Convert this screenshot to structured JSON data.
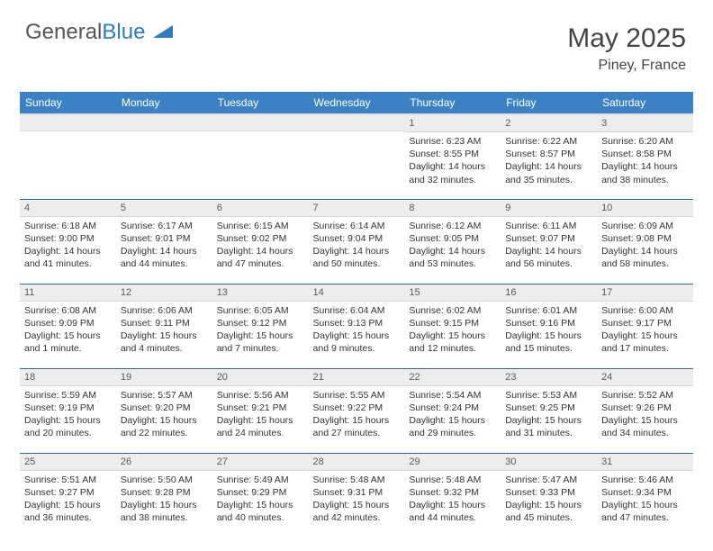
{
  "logo": {
    "part1": "General",
    "part2": "Blue"
  },
  "header": {
    "title": "May 2025",
    "location": "Piney, France"
  },
  "colors": {
    "header_bg": "#3b82c4",
    "row_border": "#2a6aa0",
    "daynum_bg": "#ededed"
  },
  "day_headers": [
    "Sunday",
    "Monday",
    "Tuesday",
    "Wednesday",
    "Thursday",
    "Friday",
    "Saturday"
  ],
  "weeks": [
    [
      {
        "n": "",
        "sr": "",
        "ss": "",
        "dl": ""
      },
      {
        "n": "",
        "sr": "",
        "ss": "",
        "dl": ""
      },
      {
        "n": "",
        "sr": "",
        "ss": "",
        "dl": ""
      },
      {
        "n": "",
        "sr": "",
        "ss": "",
        "dl": ""
      },
      {
        "n": "1",
        "sr": "Sunrise: 6:23 AM",
        "ss": "Sunset: 8:55 PM",
        "dl": "Daylight: 14 hours and 32 minutes."
      },
      {
        "n": "2",
        "sr": "Sunrise: 6:22 AM",
        "ss": "Sunset: 8:57 PM",
        "dl": "Daylight: 14 hours and 35 minutes."
      },
      {
        "n": "3",
        "sr": "Sunrise: 6:20 AM",
        "ss": "Sunset: 8:58 PM",
        "dl": "Daylight: 14 hours and 38 minutes."
      }
    ],
    [
      {
        "n": "4",
        "sr": "Sunrise: 6:18 AM",
        "ss": "Sunset: 9:00 PM",
        "dl": "Daylight: 14 hours and 41 minutes."
      },
      {
        "n": "5",
        "sr": "Sunrise: 6:17 AM",
        "ss": "Sunset: 9:01 PM",
        "dl": "Daylight: 14 hours and 44 minutes."
      },
      {
        "n": "6",
        "sr": "Sunrise: 6:15 AM",
        "ss": "Sunset: 9:02 PM",
        "dl": "Daylight: 14 hours and 47 minutes."
      },
      {
        "n": "7",
        "sr": "Sunrise: 6:14 AM",
        "ss": "Sunset: 9:04 PM",
        "dl": "Daylight: 14 hours and 50 minutes."
      },
      {
        "n": "8",
        "sr": "Sunrise: 6:12 AM",
        "ss": "Sunset: 9:05 PM",
        "dl": "Daylight: 14 hours and 53 minutes."
      },
      {
        "n": "9",
        "sr": "Sunrise: 6:11 AM",
        "ss": "Sunset: 9:07 PM",
        "dl": "Daylight: 14 hours and 56 minutes."
      },
      {
        "n": "10",
        "sr": "Sunrise: 6:09 AM",
        "ss": "Sunset: 9:08 PM",
        "dl": "Daylight: 14 hours and 58 minutes."
      }
    ],
    [
      {
        "n": "11",
        "sr": "Sunrise: 6:08 AM",
        "ss": "Sunset: 9:09 PM",
        "dl": "Daylight: 15 hours and 1 minute."
      },
      {
        "n": "12",
        "sr": "Sunrise: 6:06 AM",
        "ss": "Sunset: 9:11 PM",
        "dl": "Daylight: 15 hours and 4 minutes."
      },
      {
        "n": "13",
        "sr": "Sunrise: 6:05 AM",
        "ss": "Sunset: 9:12 PM",
        "dl": "Daylight: 15 hours and 7 minutes."
      },
      {
        "n": "14",
        "sr": "Sunrise: 6:04 AM",
        "ss": "Sunset: 9:13 PM",
        "dl": "Daylight: 15 hours and 9 minutes."
      },
      {
        "n": "15",
        "sr": "Sunrise: 6:02 AM",
        "ss": "Sunset: 9:15 PM",
        "dl": "Daylight: 15 hours and 12 minutes."
      },
      {
        "n": "16",
        "sr": "Sunrise: 6:01 AM",
        "ss": "Sunset: 9:16 PM",
        "dl": "Daylight: 15 hours and 15 minutes."
      },
      {
        "n": "17",
        "sr": "Sunrise: 6:00 AM",
        "ss": "Sunset: 9:17 PM",
        "dl": "Daylight: 15 hours and 17 minutes."
      }
    ],
    [
      {
        "n": "18",
        "sr": "Sunrise: 5:59 AM",
        "ss": "Sunset: 9:19 PM",
        "dl": "Daylight: 15 hours and 20 minutes."
      },
      {
        "n": "19",
        "sr": "Sunrise: 5:57 AM",
        "ss": "Sunset: 9:20 PM",
        "dl": "Daylight: 15 hours and 22 minutes."
      },
      {
        "n": "20",
        "sr": "Sunrise: 5:56 AM",
        "ss": "Sunset: 9:21 PM",
        "dl": "Daylight: 15 hours and 24 minutes."
      },
      {
        "n": "21",
        "sr": "Sunrise: 5:55 AM",
        "ss": "Sunset: 9:22 PM",
        "dl": "Daylight: 15 hours and 27 minutes."
      },
      {
        "n": "22",
        "sr": "Sunrise: 5:54 AM",
        "ss": "Sunset: 9:24 PM",
        "dl": "Daylight: 15 hours and 29 minutes."
      },
      {
        "n": "23",
        "sr": "Sunrise: 5:53 AM",
        "ss": "Sunset: 9:25 PM",
        "dl": "Daylight: 15 hours and 31 minutes."
      },
      {
        "n": "24",
        "sr": "Sunrise: 5:52 AM",
        "ss": "Sunset: 9:26 PM",
        "dl": "Daylight: 15 hours and 34 minutes."
      }
    ],
    [
      {
        "n": "25",
        "sr": "Sunrise: 5:51 AM",
        "ss": "Sunset: 9:27 PM",
        "dl": "Daylight: 15 hours and 36 minutes."
      },
      {
        "n": "26",
        "sr": "Sunrise: 5:50 AM",
        "ss": "Sunset: 9:28 PM",
        "dl": "Daylight: 15 hours and 38 minutes."
      },
      {
        "n": "27",
        "sr": "Sunrise: 5:49 AM",
        "ss": "Sunset: 9:29 PM",
        "dl": "Daylight: 15 hours and 40 minutes."
      },
      {
        "n": "28",
        "sr": "Sunrise: 5:48 AM",
        "ss": "Sunset: 9:31 PM",
        "dl": "Daylight: 15 hours and 42 minutes."
      },
      {
        "n": "29",
        "sr": "Sunrise: 5:48 AM",
        "ss": "Sunset: 9:32 PM",
        "dl": "Daylight: 15 hours and 44 minutes."
      },
      {
        "n": "30",
        "sr": "Sunrise: 5:47 AM",
        "ss": "Sunset: 9:33 PM",
        "dl": "Daylight: 15 hours and 45 minutes."
      },
      {
        "n": "31",
        "sr": "Sunrise: 5:46 AM",
        "ss": "Sunset: 9:34 PM",
        "dl": "Daylight: 15 hours and 47 minutes."
      }
    ]
  ]
}
